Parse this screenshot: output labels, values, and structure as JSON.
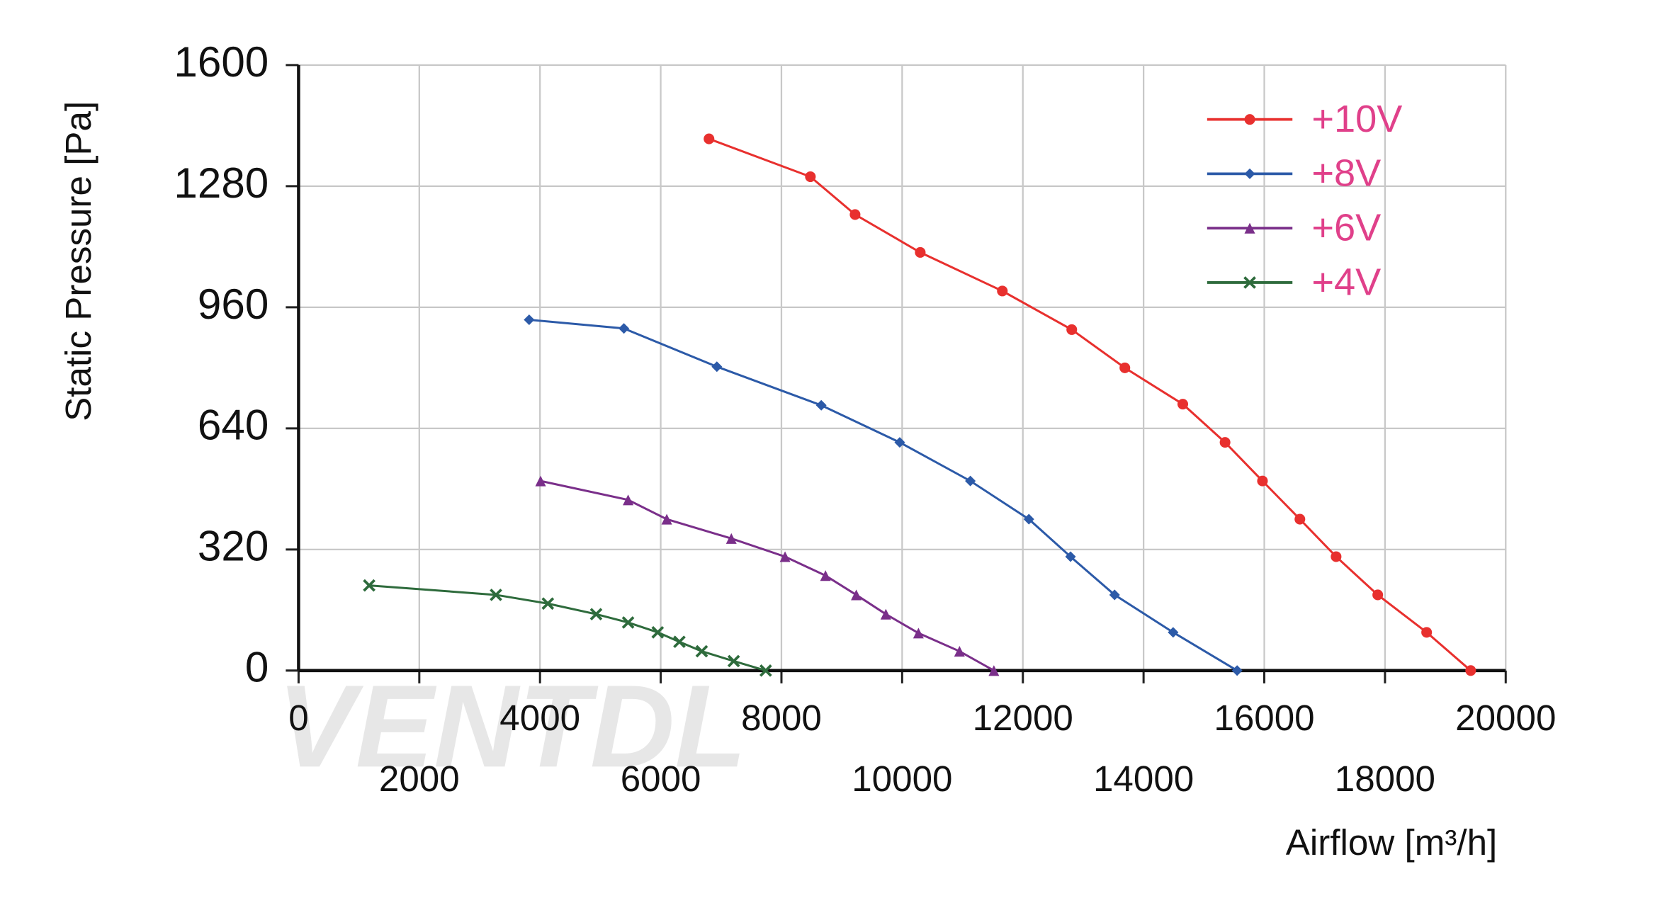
{
  "chart_data": {
    "type": "line",
    "y_label": "Static Pressure [Pa]",
    "x_label": "Airflow [m³/h]",
    "watermark": "VENTDL",
    "xlim": [
      0,
      20000
    ],
    "xticks": [
      0,
      2000,
      4000,
      6000,
      8000,
      10000,
      12000,
      14000,
      16000,
      18000,
      20000
    ],
    "ylim": [
      0,
      1600
    ],
    "yticks": [
      0,
      320,
      640,
      960,
      1280,
      1600
    ],
    "grid": true,
    "legend": "top-right",
    "series": [
      {
        "name": "+10V",
        "color": "#e8302e",
        "marker": "circle",
        "x": [
          6800,
          8480,
          9220,
          10300,
          11660,
          12810,
          13690,
          14650,
          15350,
          15970,
          16590,
          17190,
          17880,
          18690,
          19420
        ],
        "values": [
          1405,
          1305,
          1205,
          1105,
          1003,
          901,
          800,
          704,
          603,
          501,
          400,
          301,
          200,
          101,
          0
        ]
      },
      {
        "name": "+8V",
        "color": "#2c5aa8",
        "marker": "diamond",
        "x": [
          3820,
          5390,
          6930,
          8660,
          9960,
          11130,
          12100,
          12790,
          13520,
          14490,
          15550
        ],
        "values": [
          927,
          904,
          803,
          701,
          603,
          501,
          400,
          301,
          200,
          101,
          0
        ]
      },
      {
        "name": "+6V",
        "color": "#7a2f8a",
        "marker": "triangle",
        "x": [
          4010,
          5460,
          6100,
          7170,
          8060,
          8730,
          9240,
          9730,
          10270,
          10950,
          11520
        ],
        "values": [
          501,
          451,
          400,
          349,
          301,
          251,
          200,
          149,
          99,
          51,
          0
        ]
      },
      {
        "name": "+4V",
        "color": "#2e6b3c",
        "marker": "cross",
        "x": [
          1170,
          3270,
          4130,
          4930,
          5460,
          5950,
          6310,
          6680,
          7210,
          7740
        ],
        "values": [
          225,
          200,
          177,
          149,
          127,
          101,
          76,
          51,
          25,
          0
        ]
      }
    ]
  }
}
